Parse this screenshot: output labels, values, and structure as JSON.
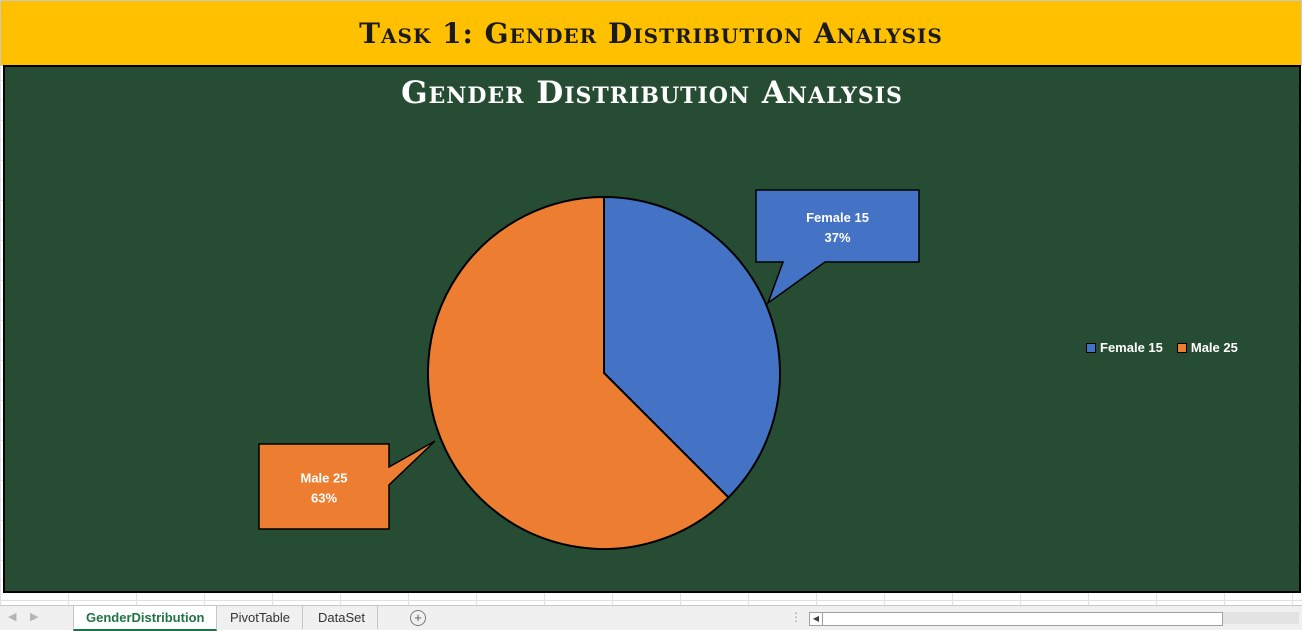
{
  "sheet_title": "Task 1: Gender Distribution Analysis",
  "chart_data": {
    "type": "pie",
    "title": "Gender Distribution Analysis",
    "categories": [
      "Female",
      "Male"
    ],
    "values": [
      15,
      25
    ],
    "percentages": [
      37,
      63
    ],
    "data_labels": [
      {
        "category": "Female 15",
        "percent": "37%"
      },
      {
        "category": "Male 25",
        "percent": "63%"
      }
    ],
    "legend": [
      "Female 15",
      "Male 25"
    ],
    "legend_position": "right",
    "colors": [
      "#4472c4",
      "#ed7d31"
    ],
    "background": "#264d33"
  },
  "colors": {
    "title_bar": "#ffc000",
    "chart_background": "#264d33",
    "active_tab": "#217346"
  },
  "sheet_tabs": [
    "GenderDistribution",
    "PivotTable",
    "DataSet"
  ],
  "active_tab": "GenderDistribution"
}
